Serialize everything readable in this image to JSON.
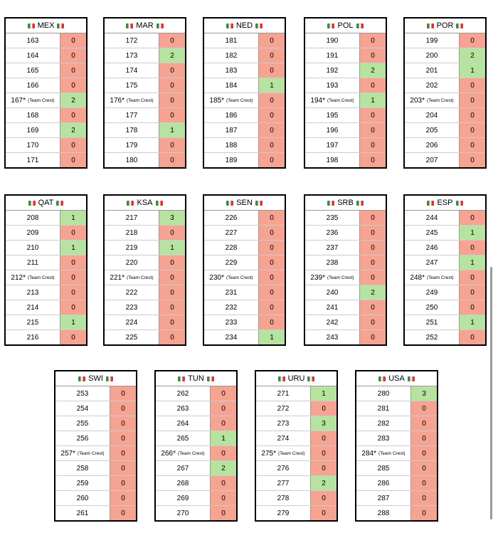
{
  "colors": {
    "zero": "#f6a392",
    "positive": "#b6e3a0"
  },
  "tables": [
    {
      "team": "MEX",
      "rows": [
        [
          163,
          0
        ],
        [
          164,
          0
        ],
        [
          165,
          0
        ],
        [
          166,
          0
        ],
        [
          "167*",
          "(Team Crest)",
          2
        ],
        [
          168,
          0
        ],
        [
          169,
          2
        ],
        [
          170,
          0
        ],
        [
          171,
          0
        ]
      ]
    },
    {
      "team": "MAR",
      "rows": [
        [
          172,
          0
        ],
        [
          173,
          2
        ],
        [
          174,
          0
        ],
        [
          175,
          0
        ],
        [
          "176*",
          "(Team Crest)",
          0
        ],
        [
          177,
          0
        ],
        [
          178,
          1
        ],
        [
          179,
          0
        ],
        [
          180,
          0
        ]
      ]
    },
    {
      "team": "NED",
      "rows": [
        [
          181,
          0
        ],
        [
          182,
          0
        ],
        [
          183,
          0
        ],
        [
          184,
          1
        ],
        [
          "185*",
          "(Team Crest)",
          0
        ],
        [
          186,
          0
        ],
        [
          187,
          0
        ],
        [
          188,
          0
        ],
        [
          189,
          0
        ]
      ]
    },
    {
      "team": "POL",
      "rows": [
        [
          190,
          0
        ],
        [
          191,
          0
        ],
        [
          192,
          2
        ],
        [
          193,
          0
        ],
        [
          "194*",
          "(Team Crest)",
          1
        ],
        [
          195,
          0
        ],
        [
          196,
          0
        ],
        [
          197,
          0
        ],
        [
          198,
          0
        ]
      ]
    },
    {
      "team": "POR",
      "rows": [
        [
          199,
          0
        ],
        [
          200,
          2
        ],
        [
          201,
          1
        ],
        [
          202,
          0
        ],
        [
          "203*",
          "(Team Crest)",
          0
        ],
        [
          204,
          0
        ],
        [
          205,
          0
        ],
        [
          206,
          0
        ],
        [
          207,
          0
        ]
      ]
    },
    {
      "team": "QAT",
      "rows": [
        [
          208,
          1
        ],
        [
          209,
          0
        ],
        [
          210,
          1
        ],
        [
          211,
          0
        ],
        [
          "212*",
          "(Team Crest)",
          0
        ],
        [
          213,
          0
        ],
        [
          214,
          0
        ],
        [
          215,
          1
        ],
        [
          216,
          0
        ]
      ]
    },
    {
      "team": "KSA",
      "rows": [
        [
          217,
          3
        ],
        [
          218,
          0
        ],
        [
          219,
          1
        ],
        [
          220,
          0
        ],
        [
          "221*",
          "(Team Crest)",
          0
        ],
        [
          222,
          0
        ],
        [
          223,
          0
        ],
        [
          224,
          0
        ],
        [
          225,
          0
        ]
      ]
    },
    {
      "team": "SEN",
      "rows": [
        [
          226,
          0
        ],
        [
          227,
          0
        ],
        [
          228,
          0
        ],
        [
          229,
          0
        ],
        [
          "230*",
          "(Team Crest)",
          0
        ],
        [
          231,
          0
        ],
        [
          232,
          0
        ],
        [
          233,
          0
        ],
        [
          234,
          1
        ]
      ]
    },
    {
      "team": "SRB",
      "rows": [
        [
          235,
          0
        ],
        [
          236,
          0
        ],
        [
          237,
          0
        ],
        [
          238,
          0
        ],
        [
          "239*",
          "(Team Crest)",
          0
        ],
        [
          240,
          2
        ],
        [
          241,
          0
        ],
        [
          242,
          0
        ],
        [
          243,
          0
        ]
      ]
    },
    {
      "team": "ESP",
      "rows": [
        [
          244,
          0
        ],
        [
          245,
          1
        ],
        [
          246,
          0
        ],
        [
          247,
          1
        ],
        [
          "248*",
          "(Team Crest)",
          0
        ],
        [
          249,
          0
        ],
        [
          250,
          0
        ],
        [
          251,
          1
        ],
        [
          252,
          0
        ]
      ]
    },
    {
      "team": "SWI",
      "rows": [
        [
          253,
          0
        ],
        [
          254,
          0
        ],
        [
          255,
          0
        ],
        [
          256,
          0
        ],
        [
          "257*",
          "(Team Crest)",
          0
        ],
        [
          258,
          0
        ],
        [
          259,
          0
        ],
        [
          260,
          0
        ],
        [
          261,
          0
        ]
      ]
    },
    {
      "team": "TUN",
      "rows": [
        [
          262,
          0
        ],
        [
          263,
          0
        ],
        [
          264,
          0
        ],
        [
          265,
          1
        ],
        [
          "266*",
          "(Team Crest)",
          0
        ],
        [
          267,
          2
        ],
        [
          268,
          0
        ],
        [
          269,
          0
        ],
        [
          270,
          0
        ]
      ]
    },
    {
      "team": "URU",
      "rows": [
        [
          271,
          1
        ],
        [
          272,
          0
        ],
        [
          273,
          3
        ],
        [
          274,
          0
        ],
        [
          "275*",
          "(Team Crest)",
          0
        ],
        [
          276,
          0
        ],
        [
          277,
          2
        ],
        [
          278,
          0
        ],
        [
          279,
          0
        ]
      ]
    },
    {
      "team": "USA",
      "rows": [
        [
          280,
          3
        ],
        [
          281,
          0
        ],
        [
          282,
          0
        ],
        [
          283,
          0
        ],
        [
          "284*",
          "(Team Crest)",
          0
        ],
        [
          285,
          0
        ],
        [
          286,
          0
        ],
        [
          287,
          0
        ],
        [
          288,
          0
        ]
      ]
    }
  ]
}
